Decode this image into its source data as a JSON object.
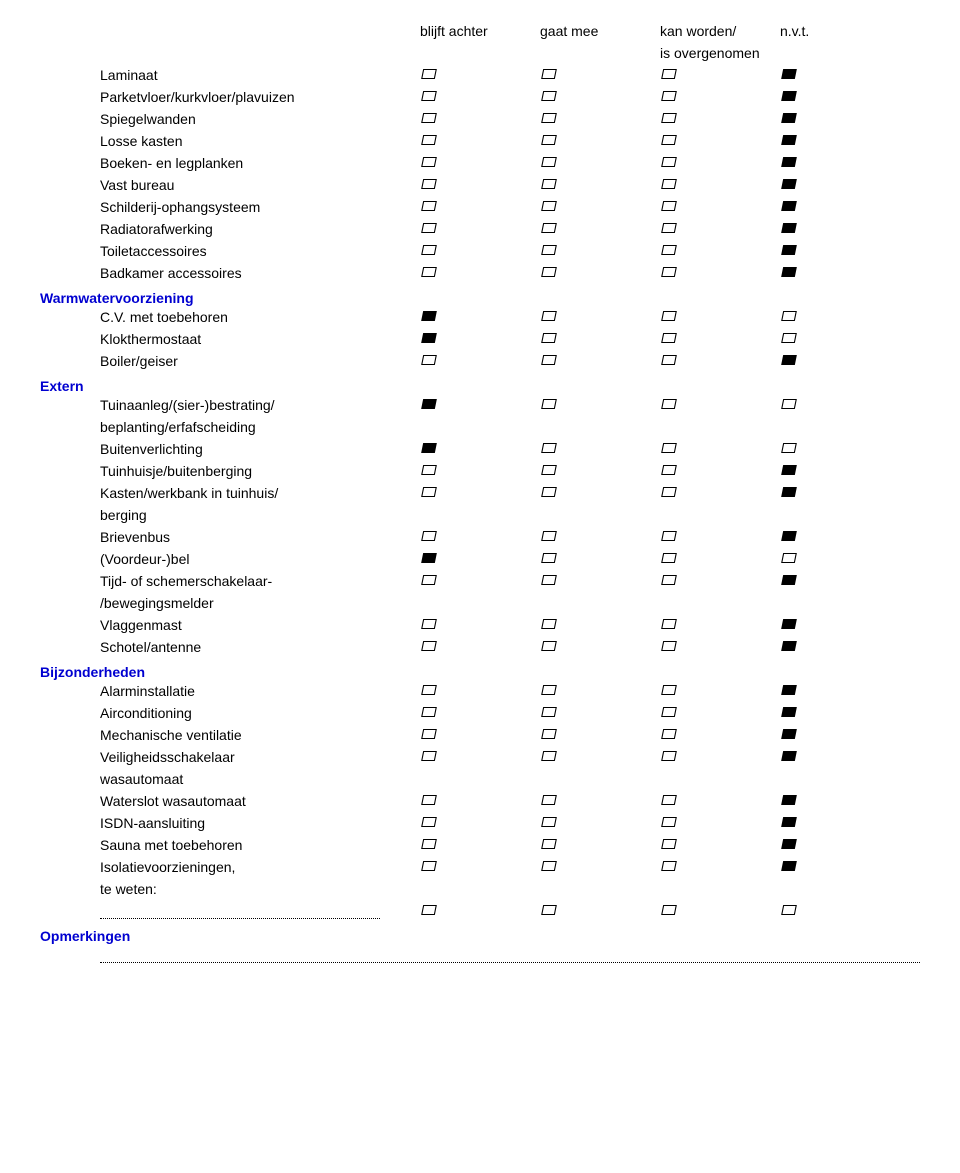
{
  "headers": {
    "col1": "blijft achter",
    "col2": "gaat mee",
    "col3a": "kan worden/",
    "col3b": "is overgenomen",
    "col4": "n.v.t."
  },
  "sections": [
    {
      "title": "",
      "items": [
        {
          "label": "Laminaat",
          "checks": [
            false,
            false,
            false,
            true
          ]
        },
        {
          "label": "Parketvloer/kurkvloer/plavuizen",
          "checks": [
            false,
            false,
            false,
            true
          ]
        },
        {
          "label": "Spiegelwanden",
          "checks": [
            false,
            false,
            false,
            true
          ]
        },
        {
          "label": "Losse kasten",
          "checks": [
            false,
            false,
            false,
            true
          ]
        },
        {
          "label": "Boeken- en legplanken",
          "checks": [
            false,
            false,
            false,
            true
          ]
        },
        {
          "label": "Vast bureau",
          "checks": [
            false,
            false,
            false,
            true
          ]
        },
        {
          "label": "Schilderij-ophangsysteem",
          "checks": [
            false,
            false,
            false,
            true
          ]
        },
        {
          "label": "Radiatorafwerking",
          "checks": [
            false,
            false,
            false,
            true
          ]
        },
        {
          "label": "Toiletaccessoires",
          "checks": [
            false,
            false,
            false,
            true
          ]
        },
        {
          "label": "Badkamer accessoires",
          "checks": [
            false,
            false,
            false,
            true
          ]
        }
      ]
    },
    {
      "title": "Warmwatervoorziening",
      "items": [
        {
          "label": "C.V. met toebehoren",
          "checks": [
            true,
            false,
            false,
            false
          ]
        },
        {
          "label": "Klokthermostaat",
          "checks": [
            true,
            false,
            false,
            false
          ]
        },
        {
          "label": "Boiler/geiser",
          "checks": [
            false,
            false,
            false,
            true
          ]
        }
      ]
    },
    {
      "title": "Extern",
      "items": [
        {
          "label": "Tuinaanleg/(sier-)bestrating/",
          "checks": [
            true,
            false,
            false,
            false
          ]
        },
        {
          "label": "beplanting/erfafscheiding",
          "checks": null
        },
        {
          "label": "Buitenverlichting",
          "checks": [
            true,
            false,
            false,
            false
          ]
        },
        {
          "label": "Tuinhuisje/buitenberging",
          "checks": [
            false,
            false,
            false,
            true
          ]
        },
        {
          "label": "Kasten/werkbank in tuinhuis/",
          "checks": [
            false,
            false,
            false,
            true
          ]
        },
        {
          "label": "berging",
          "checks": null
        },
        {
          "label": "Brievenbus",
          "checks": [
            false,
            false,
            false,
            true
          ]
        },
        {
          "label": "(Voordeur-)bel",
          "checks": [
            true,
            false,
            false,
            false
          ]
        },
        {
          "label": "Tijd- of schemerschakelaar-",
          "checks": [
            false,
            false,
            false,
            true
          ]
        },
        {
          "label": "/bewegingsmelder",
          "checks": null
        },
        {
          "label": "Vlaggenmast",
          "checks": [
            false,
            false,
            false,
            true
          ]
        },
        {
          "label": "Schotel/antenne",
          "checks": [
            false,
            false,
            false,
            true
          ]
        }
      ]
    },
    {
      "title": "Bijzonderheden",
      "items": [
        {
          "label": "Alarminstallatie",
          "checks": [
            false,
            false,
            false,
            true
          ]
        },
        {
          "label": "Airconditioning",
          "checks": [
            false,
            false,
            false,
            true
          ]
        },
        {
          "label": "Mechanische ventilatie",
          "checks": [
            false,
            false,
            false,
            true
          ]
        },
        {
          "label": "Veiligheidsschakelaar",
          "checks": [
            false,
            false,
            false,
            true
          ]
        },
        {
          "label": "wasautomaat",
          "checks": null
        },
        {
          "label": "Waterslot wasautomaat",
          "checks": [
            false,
            false,
            false,
            true
          ]
        },
        {
          "label": "ISDN-aansluiting",
          "checks": [
            false,
            false,
            false,
            true
          ]
        },
        {
          "label": "Sauna met toebehoren",
          "checks": [
            false,
            false,
            false,
            true
          ]
        },
        {
          "label": "Isolatievoorzieningen,",
          "checks": [
            false,
            false,
            false,
            true
          ]
        },
        {
          "label": "te weten:",
          "checks": null
        },
        {
          "label": "DOTTED",
          "checks": [
            false,
            false,
            false,
            false
          ]
        }
      ]
    },
    {
      "title": "Opmerkingen",
      "items": [
        {
          "label": "DOTTED_FULL",
          "checks": null
        }
      ]
    }
  ]
}
